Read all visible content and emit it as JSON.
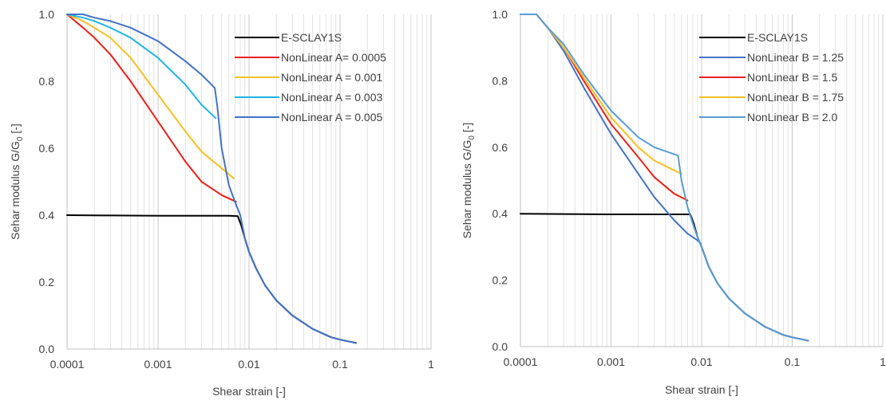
{
  "chart_data": [
    {
      "type": "line",
      "xscale": "log",
      "xlim": [
        0.0001,
        1
      ],
      "ylim": [
        0,
        1.0
      ],
      "xticks": [
        "0.0001",
        "0.001",
        "0.01",
        "0.1",
        "1"
      ],
      "yticks": [
        "0.0",
        "0.2",
        "0.4",
        "0.6",
        "0.8",
        "1.0"
      ],
      "xlabel": "Shear strain [-]",
      "ylabel_main": "Sehar modulus G/G",
      "ylabel_sub": "0",
      "ylabel_suffix": " [-]",
      "legend_position": "top-right",
      "series": [
        {
          "name": "E-SCLAY1S",
          "color": "#000000",
          "x": [
            0.0001,
            0.0003,
            0.001,
            0.003,
            0.006,
            0.0075,
            0.0082,
            0.009,
            0.01,
            0.012,
            0.015,
            0.02,
            0.03,
            0.05,
            0.08,
            0.1,
            0.15
          ],
          "y": [
            0.4,
            0.399,
            0.398,
            0.398,
            0.398,
            0.397,
            0.37,
            0.33,
            0.29,
            0.24,
            0.19,
            0.145,
            0.1,
            0.06,
            0.035,
            0.028,
            0.018
          ]
        },
        {
          "name": "NonLinear A= 0.0005",
          "color": "#e8211a",
          "x": [
            0.0001,
            0.00015,
            0.0002,
            0.0003,
            0.0005,
            0.001,
            0.002,
            0.003,
            0.005,
            0.0072
          ],
          "y": [
            1.0,
            0.96,
            0.93,
            0.88,
            0.8,
            0.68,
            0.56,
            0.5,
            0.46,
            0.44
          ]
        },
        {
          "name": "NonLinear A = 0.001",
          "color": "#f6c023",
          "x": [
            0.0001,
            0.00015,
            0.0002,
            0.0003,
            0.0005,
            0.001,
            0.002,
            0.003,
            0.005,
            0.0068
          ],
          "y": [
            1.0,
            0.98,
            0.96,
            0.93,
            0.87,
            0.76,
            0.65,
            0.59,
            0.54,
            0.51
          ]
        },
        {
          "name": "NonLinear A = 0.003",
          "color": "#1fb4e6",
          "x": [
            0.0001,
            0.00015,
            0.0002,
            0.0003,
            0.0005,
            0.001,
            0.002,
            0.003,
            0.0043
          ],
          "y": [
            1.0,
            0.99,
            0.98,
            0.96,
            0.93,
            0.87,
            0.79,
            0.73,
            0.69
          ]
        },
        {
          "name": "NonLinear A = 0.005",
          "color": "#4472c4",
          "x": [
            0.0001,
            0.00015,
            0.0002,
            0.0003,
            0.0005,
            0.001,
            0.002,
            0.003,
            0.0042,
            0.0045,
            0.005,
            0.006,
            0.007,
            0.008,
            0.009,
            0.01,
            0.012,
            0.015,
            0.02,
            0.03,
            0.05,
            0.08,
            0.1,
            0.15
          ],
          "y": [
            1.0,
            1.0,
            0.99,
            0.98,
            0.96,
            0.92,
            0.86,
            0.82,
            0.78,
            0.72,
            0.6,
            0.49,
            0.44,
            0.4,
            0.33,
            0.29,
            0.24,
            0.19,
            0.145,
            0.1,
            0.06,
            0.035,
            0.028,
            0.018
          ]
        }
      ]
    },
    {
      "type": "line",
      "xscale": "log",
      "xlim": [
        0.0001,
        1
      ],
      "ylim": [
        0,
        1.0
      ],
      "xticks": [
        "0.0001",
        "0.001",
        "0.01",
        "0.1",
        "1"
      ],
      "yticks": [
        "0.0",
        "0.2",
        "0.4",
        "0.6",
        "0.8",
        "1.0"
      ],
      "xlabel": "Shear strain [-]",
      "ylabel_main": "Sehar modulus G/G",
      "ylabel_sub": "0",
      "ylabel_suffix": " [-]",
      "legend_position": "top-right",
      "series": [
        {
          "name": "E-SCLAY1S",
          "color": "#000000",
          "x": [
            0.0001,
            0.0003,
            0.001,
            0.003,
            0.006,
            0.0075,
            0.0082,
            0.009,
            0.01,
            0.012,
            0.015,
            0.02,
            0.03,
            0.05,
            0.08,
            0.1,
            0.15
          ],
          "y": [
            0.4,
            0.399,
            0.398,
            0.398,
            0.398,
            0.398,
            0.37,
            0.33,
            0.3,
            0.24,
            0.19,
            0.145,
            0.1,
            0.06,
            0.035,
            0.028,
            0.018
          ]
        },
        {
          "name": "NonLinear B = 1.25",
          "color": "#4472c4",
          "x": [
            0.0001,
            0.00015,
            0.0002,
            0.0003,
            0.0005,
            0.001,
            0.002,
            0.003,
            0.005,
            0.007,
            0.009,
            0.0098
          ],
          "y": [
            1.0,
            1.0,
            0.96,
            0.89,
            0.78,
            0.64,
            0.52,
            0.45,
            0.38,
            0.34,
            0.32,
            0.31
          ]
        },
        {
          "name": "NonLinear B = 1.5",
          "color": "#e8211a",
          "x": [
            0.0001,
            0.00015,
            0.0002,
            0.0003,
            0.0005,
            0.001,
            0.002,
            0.003,
            0.005,
            0.007
          ],
          "y": [
            1.0,
            1.0,
            0.96,
            0.9,
            0.8,
            0.67,
            0.57,
            0.51,
            0.46,
            0.44
          ]
        },
        {
          "name": "NonLinear B = 1.75",
          "color": "#f6c023",
          "x": [
            0.0001,
            0.00015,
            0.0002,
            0.0003,
            0.0005,
            0.001,
            0.002,
            0.003,
            0.006
          ],
          "y": [
            1.0,
            1.0,
            0.96,
            0.9,
            0.81,
            0.69,
            0.6,
            0.56,
            0.52
          ]
        },
        {
          "name": "NonLinear B = 2.0",
          "color": "#5b9bd5",
          "x": [
            0.0001,
            0.00015,
            0.0002,
            0.0003,
            0.0005,
            0.001,
            0.002,
            0.003,
            0.0055,
            0.006,
            0.007,
            0.008,
            0.009,
            0.01,
            0.012,
            0.015,
            0.02,
            0.03,
            0.05,
            0.08,
            0.1,
            0.15
          ],
          "y": [
            1.0,
            1.0,
            0.96,
            0.91,
            0.82,
            0.71,
            0.63,
            0.6,
            0.575,
            0.5,
            0.42,
            0.37,
            0.33,
            0.3,
            0.24,
            0.19,
            0.145,
            0.1,
            0.06,
            0.035,
            0.028,
            0.018
          ]
        }
      ]
    }
  ]
}
